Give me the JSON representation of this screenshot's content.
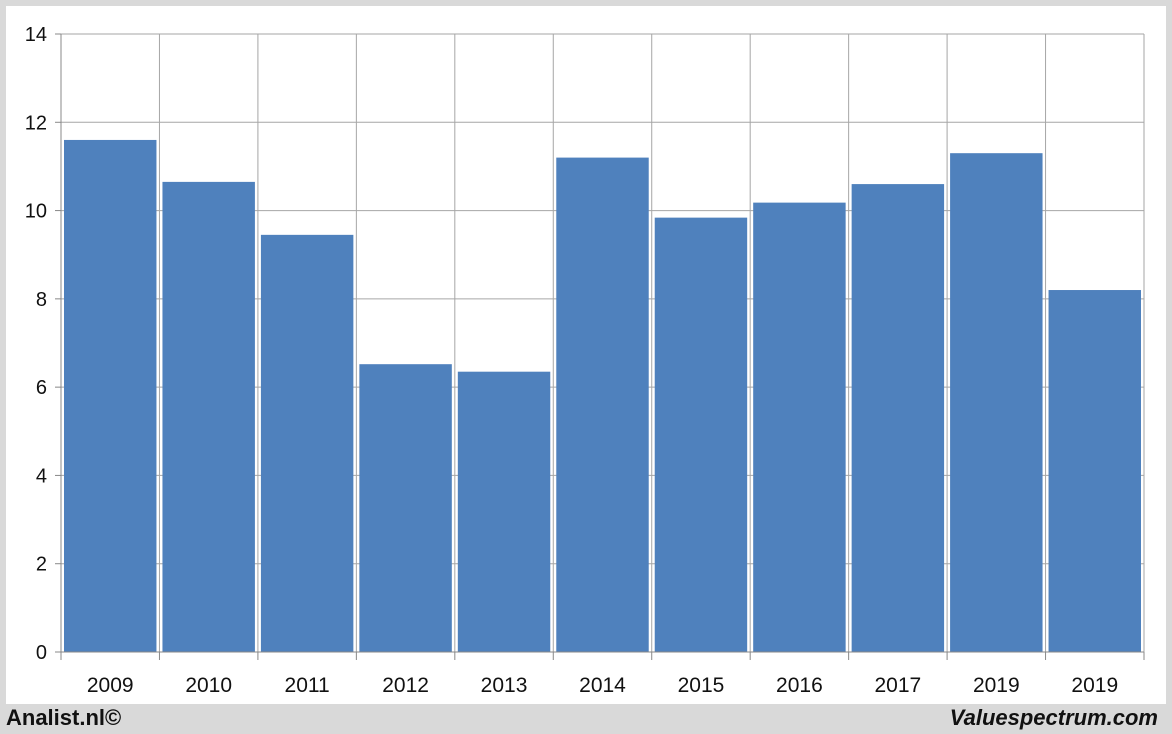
{
  "chart_data": {
    "type": "bar",
    "categories": [
      "2009",
      "2010",
      "2011",
      "2012",
      "2013",
      "2014",
      "2015",
      "2016",
      "2017",
      "2019",
      "2019"
    ],
    "values": [
      11.6,
      10.65,
      9.45,
      6.52,
      6.35,
      11.2,
      9.84,
      10.18,
      10.6,
      11.3,
      8.2
    ],
    "title": "",
    "xlabel": "",
    "ylabel": "",
    "ylim": [
      0,
      14
    ],
    "yticks": [
      "0",
      "2",
      "4",
      "6",
      "8",
      "10",
      "12",
      "14"
    ],
    "grid": true,
    "bar_color": "#4f81bd",
    "grid_color": "#a6a6a6"
  },
  "footer": {
    "left": "Analist.nl©",
    "right": "Valuespectrum.com"
  }
}
